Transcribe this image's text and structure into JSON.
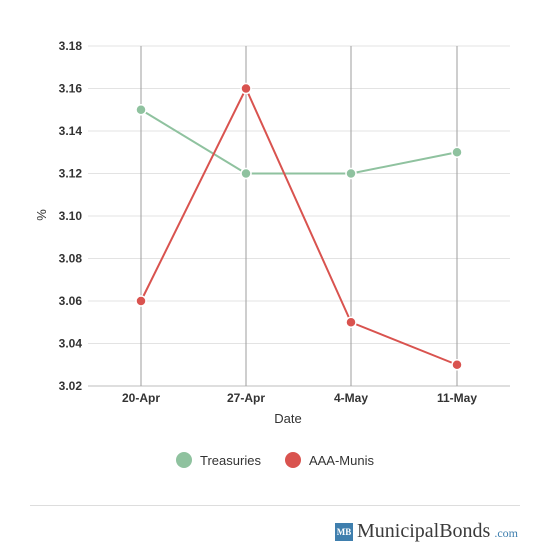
{
  "chart_data": {
    "type": "line",
    "xlabel": "Date",
    "ylabel": "%",
    "categories": [
      "20-Apr",
      "27-Apr",
      "4-May",
      "11-May"
    ],
    "ylim": [
      3.02,
      3.18
    ],
    "yticks": [
      "3.18",
      "3.16",
      "3.14",
      "3.12",
      "3.10",
      "3.08",
      "3.06",
      "3.04",
      "3.02"
    ],
    "grid": true,
    "legend_position": "bottom",
    "series": [
      {
        "name": "Treasuries",
        "color": "#8fc29f",
        "values": [
          3.15,
          3.12,
          3.12,
          3.13
        ]
      },
      {
        "name": "AAA-Munis",
        "color": "#d9534f",
        "values": [
          3.06,
          3.16,
          3.05,
          3.03
        ]
      }
    ]
  },
  "brand": {
    "badge": "MB",
    "name": "MunicipalBonds",
    "tld": ".com"
  }
}
